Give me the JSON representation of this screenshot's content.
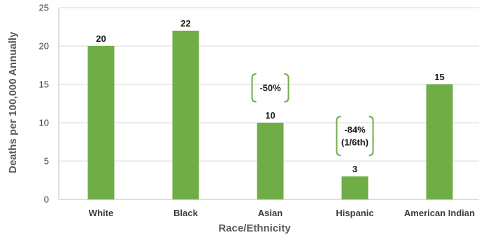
{
  "chart_data": {
    "type": "bar",
    "categories": [
      "White",
      "Black",
      "Asian",
      "Hispanic",
      "American Indian"
    ],
    "values": [
      20,
      22,
      10,
      3,
      15
    ],
    "data_labels": [
      "20",
      "22",
      "10",
      "3",
      "15"
    ],
    "xlabel": "Race/Ethnicity",
    "ylabel": "Deaths per 100,000 Annually",
    "ylim": [
      0,
      25
    ],
    "yticks": [
      0,
      5,
      10,
      15,
      20,
      25
    ],
    "grid": true,
    "bar_color": "#70ad47",
    "annotations": [
      {
        "category": "Asian",
        "lines": [
          "-50%"
        ]
      },
      {
        "category": "Hispanic",
        "lines": [
          "-84%",
          "(1/6th)"
        ]
      }
    ]
  }
}
